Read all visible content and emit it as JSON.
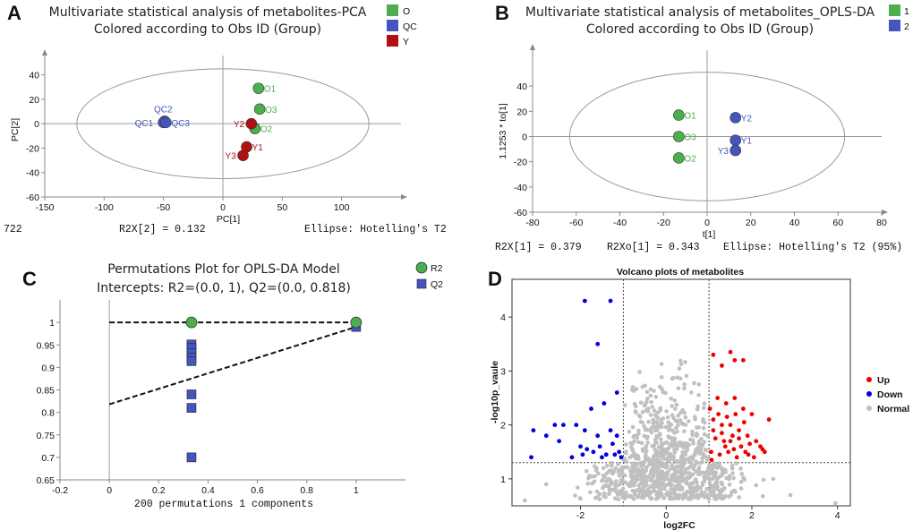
{
  "colors": {
    "O": "#4cae4c",
    "QC": "#4455bb",
    "Y": "#b01010",
    "up": "#ee0000",
    "down": "#0000dd",
    "normal": "#c0c0c0",
    "ellipse": "#999999"
  },
  "chart_data": [
    {
      "panel": "A",
      "type": "scatter",
      "title_line1": "Multivariate statistical analysis of metabolites-PCA",
      "title_line2": "Colored according to Obs ID (Group)",
      "xlabel": "PC[1]",
      "ylabel": "PC[2]",
      "xlim": [
        -150,
        150
      ],
      "ylim": [
        -60,
        50
      ],
      "xticks": [
        -150,
        -100,
        -50,
        0,
        50,
        100
      ],
      "yticks": [
        -60,
        -40,
        -20,
        0,
        20,
        40
      ],
      "legend": [
        {
          "key": "O",
          "label": "O"
        },
        {
          "key": "QC",
          "label": "QC"
        },
        {
          "key": "Y",
          "label": "Y"
        }
      ],
      "ellipse": {
        "rx": 123,
        "ry": 45
      },
      "footer_left": "722",
      "footer_mid": "R2X[2] = 0.132",
      "footer_right": "Ellipse: Hotelling's T2",
      "points": [
        {
          "label": "O1",
          "group": "O",
          "x": 30,
          "y": 29,
          "lx": 6,
          "ly": 4
        },
        {
          "label": "O3",
          "group": "O",
          "x": 31,
          "y": 12,
          "lx": 6,
          "ly": 4
        },
        {
          "label": "O2",
          "group": "O",
          "x": 27,
          "y": -4,
          "lx": 6,
          "ly": 4
        },
        {
          "label": "Y2",
          "group": "Y",
          "x": 24,
          "y": 0,
          "lx": -20,
          "ly": 4
        },
        {
          "label": "Y1",
          "group": "Y",
          "x": 20,
          "y": -19,
          "lx": 6,
          "ly": 4
        },
        {
          "label": "Y3",
          "group": "Y",
          "x": 17,
          "y": -26,
          "lx": -20,
          "ly": 4
        },
        {
          "label": "QC2",
          "group": "QC",
          "x": -49,
          "y": 2,
          "lx": -12,
          "ly": -10
        },
        {
          "label": "QC1",
          "group": "QC",
          "x": -50,
          "y": 1,
          "lx": -32,
          "ly": 4
        },
        {
          "label": "QC3",
          "group": "QC",
          "x": -48,
          "y": 1,
          "lx": 6,
          "ly": 4
        }
      ]
    },
    {
      "panel": "B",
      "type": "scatter",
      "title_line1": "Multivariate statistical analysis of metabolites_OPLS-DA",
      "title_line2": "Colored according to Obs ID (Group)",
      "xlabel": "t[1]",
      "ylabel": "1.1253 * to[1]",
      "xlim": [
        -80,
        80
      ],
      "ylim": [
        -60,
        60
      ],
      "xticks": [
        -80,
        -60,
        -40,
        -20,
        0,
        20,
        40,
        60,
        80
      ],
      "yticks": [
        -60,
        -40,
        -20,
        0,
        20,
        40
      ],
      "legend": [
        {
          "key": "O",
          "label": "1"
        },
        {
          "key": "QC",
          "label": "2"
        }
      ],
      "ellipse": {
        "rx": 63,
        "ry": 51
      },
      "footer_left": "R2X[1] = 0.379",
      "footer_mid": "R2Xo[1] = 0.343",
      "footer_right": "Ellipse: Hotelling's T2 (95%)",
      "points": [
        {
          "label": "O1",
          "group": "O",
          "x": -13,
          "y": 17,
          "lx": 6,
          "ly": 4
        },
        {
          "label": "O3",
          "group": "O",
          "x": -13,
          "y": 0,
          "lx": 6,
          "ly": 4
        },
        {
          "label": "O2",
          "group": "O",
          "x": -13,
          "y": -17,
          "lx": 6,
          "ly": 4
        },
        {
          "label": "Y2",
          "group": "QC",
          "x": 13,
          "y": 15,
          "lx": 6,
          "ly": 4
        },
        {
          "label": "Y1",
          "group": "QC",
          "x": 13,
          "y": -3,
          "lx": 6,
          "ly": 4
        },
        {
          "label": "Y3",
          "group": "QC",
          "x": 13,
          "y": -11,
          "lx": -20,
          "ly": 4
        }
      ]
    },
    {
      "panel": "C",
      "type": "scatter",
      "title_line1": "Permutations Plot for OPLS-DA Model",
      "title_line2": "Intercepts: R2=(0.0, 1), Q2=(0.0, 0.818)",
      "xlim": [
        -0.2,
        1.2
      ],
      "ylim": [
        0.65,
        1.05
      ],
      "xticks": [
        -0.2,
        0,
        0.2,
        0.4,
        0.6,
        0.8,
        1
      ],
      "yticks": [
        0.65,
        0.7,
        0.75,
        0.8,
        0.85,
        0.9,
        0.95,
        1
      ],
      "legend": [
        {
          "key": "O",
          "label": "R2",
          "shape": "circle"
        },
        {
          "key": "QC",
          "label": "Q2",
          "shape": "square"
        }
      ],
      "footer_mid": "200 permutations 1 components",
      "r2_points": [
        {
          "x": 0.333,
          "y": 1.0
        },
        {
          "x": 1,
          "y": 1.0
        }
      ],
      "q2_points": [
        {
          "x": 0.333,
          "y": 0.951
        },
        {
          "x": 0.333,
          "y": 0.943
        },
        {
          "x": 0.333,
          "y": 0.932
        },
        {
          "x": 0.333,
          "y": 0.922
        },
        {
          "x": 0.333,
          "y": 0.914
        },
        {
          "x": 0.333,
          "y": 0.84
        },
        {
          "x": 0.333,
          "y": 0.81
        },
        {
          "x": 0.333,
          "y": 0.7
        },
        {
          "x": 1,
          "y": 0.99
        }
      ],
      "r2_line": [
        [
          0,
          1.0
        ],
        [
          1,
          1.0
        ]
      ],
      "q2_line": [
        [
          0,
          0.818
        ],
        [
          1,
          0.99
        ]
      ]
    },
    {
      "panel": "D",
      "type": "scatter",
      "title": "Volcano plots of metabolites",
      "xlabel": "log2FC",
      "ylabel": "-log10p_vaule",
      "xlim": [
        -3.6,
        4.3
      ],
      "ylim": [
        0.5,
        4.7
      ],
      "xticks": [
        -2,
        0,
        2,
        4
      ],
      "yticks": [
        1,
        2,
        3,
        4
      ],
      "thresholds": {
        "fc": [
          -1,
          1
        ],
        "p": 1.3
      },
      "legend": [
        {
          "key": "up",
          "label": "Up"
        },
        {
          "key": "down",
          "label": "Down"
        },
        {
          "key": "normal",
          "label": "Normal"
        }
      ],
      "up_points": [
        [
          1.1,
          3.3
        ],
        [
          1.3,
          3.1
        ],
        [
          1.5,
          3.35
        ],
        [
          1.6,
          3.2
        ],
        [
          1.8,
          3.2
        ],
        [
          1.2,
          2.5
        ],
        [
          1.4,
          2.4
        ],
        [
          1.6,
          2.5
        ],
        [
          1.8,
          2.3
        ],
        [
          2.0,
          2.2
        ],
        [
          1.1,
          2.1
        ],
        [
          1.3,
          2.0
        ],
        [
          1.5,
          2.0
        ],
        [
          1.7,
          1.9
        ],
        [
          1.9,
          1.8
        ],
        [
          2.1,
          1.7
        ],
        [
          2.4,
          2.1
        ],
        [
          2.2,
          1.6
        ],
        [
          1.05,
          1.5
        ],
        [
          1.25,
          1.45
        ],
        [
          1.45,
          1.5
        ],
        [
          1.65,
          1.4
        ],
        [
          1.85,
          1.5
        ],
        [
          2.05,
          1.4
        ],
        [
          2.25,
          1.55
        ],
        [
          1.15,
          1.75
        ],
        [
          1.35,
          1.7
        ],
        [
          1.55,
          1.8
        ],
        [
          1.75,
          1.6
        ],
        [
          1.95,
          1.65
        ],
        [
          1.1,
          1.9
        ],
        [
          1.3,
          1.85
        ],
        [
          1.5,
          1.7
        ],
        [
          1.7,
          1.75
        ],
        [
          1.02,
          2.3
        ],
        [
          1.22,
          2.2
        ],
        [
          1.42,
          2.15
        ],
        [
          1.62,
          2.2
        ],
        [
          1.82,
          2.05
        ],
        [
          1.06,
          1.35
        ],
        [
          1.38,
          1.6
        ],
        [
          1.58,
          1.55
        ],
        [
          1.92,
          1.45
        ],
        [
          2.3,
          1.5
        ]
      ],
      "down_points": [
        [
          -1.9,
          4.3
        ],
        [
          -1.3,
          4.3
        ],
        [
          -1.6,
          3.5
        ],
        [
          -1.15,
          2.6
        ],
        [
          -1.45,
          2.4
        ],
        [
          -1.75,
          2.3
        ],
        [
          -2.1,
          2.0
        ],
        [
          -2.4,
          2.0
        ],
        [
          -2.6,
          2.0
        ],
        [
          -3.1,
          1.9
        ],
        [
          -2.8,
          1.8
        ],
        [
          -2.5,
          1.7
        ],
        [
          -1.9,
          1.9
        ],
        [
          -1.6,
          1.8
        ],
        [
          -1.3,
          1.9
        ],
        [
          -1.15,
          1.8
        ],
        [
          -2.0,
          1.6
        ],
        [
          -1.7,
          1.5
        ],
        [
          -1.4,
          1.45
        ],
        [
          -1.2,
          1.45
        ],
        [
          -1.85,
          1.55
        ],
        [
          -1.55,
          1.6
        ],
        [
          -1.25,
          1.65
        ],
        [
          -1.1,
          1.5
        ],
        [
          -3.15,
          1.4
        ],
        [
          -2.2,
          1.4
        ],
        [
          -1.95,
          1.45
        ],
        [
          -1.5,
          1.4
        ],
        [
          -1.05,
          1.4
        ]
      ],
      "normal_count": 950
    }
  ]
}
